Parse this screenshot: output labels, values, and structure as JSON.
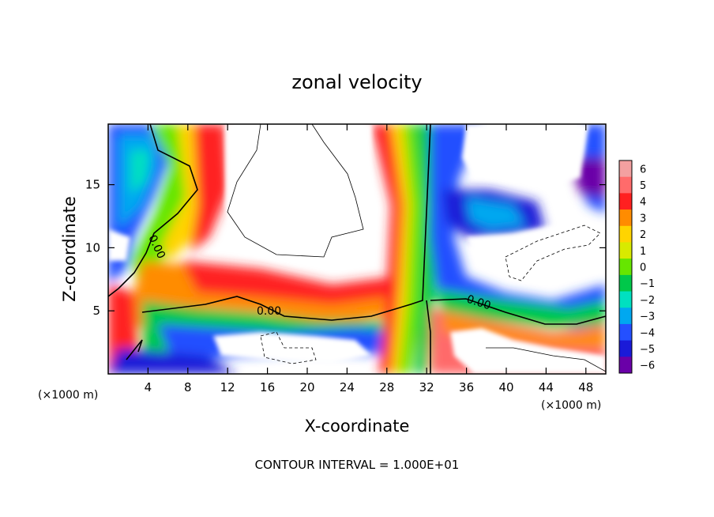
{
  "chart_data": {
    "type": "heatmap",
    "title": "zonal velocity",
    "xlabel": "X-coordinate",
    "ylabel": "Z-coordinate",
    "x_unit_note": "(×1000 m)",
    "xlim": [
      0,
      50
    ],
    "ylim": [
      0,
      19.8
    ],
    "x_ticks": [
      4,
      8,
      12,
      16,
      20,
      24,
      28,
      32,
      36,
      40,
      44,
      48
    ],
    "y_ticks": [
      5,
      10,
      15
    ],
    "contour_label": "0.00",
    "footer": "CONTOUR INTERVAL = 1.000E+01",
    "colorbar": {
      "levels": [
        6,
        5,
        4,
        3,
        2,
        1,
        0,
        -1,
        -2,
        -3,
        -4,
        -5,
        -6
      ],
      "colors": [
        "#f3a0a0",
        "#ff6b6b",
        "#ff2020",
        "#ff8c00",
        "#ffd400",
        "#d8ea00",
        "#66e600",
        "#00c84a",
        "#00e0c0",
        "#00a8f0",
        "#2450ff",
        "#1a1ad8",
        "#6a00a8"
      ]
    }
  }
}
